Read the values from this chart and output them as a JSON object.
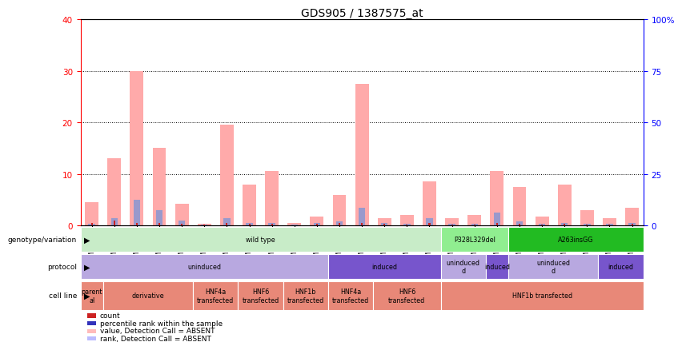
{
  "title": "GDS905 / 1387575_at",
  "samples": [
    "GSM27203",
    "GSM27204",
    "GSM27205",
    "GSM27206",
    "GSM27207",
    "GSM27150",
    "GSM27152",
    "GSM27156",
    "GSM27159",
    "GSM27063",
    "GSM27148",
    "GSM27151",
    "GSM27153",
    "GSM27157",
    "GSM27160",
    "GSM27147",
    "GSM27149",
    "GSM27161",
    "GSM27165",
    "GSM27163",
    "GSM27167",
    "GSM27169",
    "GSM27171",
    "GSM27170",
    "GSM27172"
  ],
  "pink_values": [
    4.5,
    13.0,
    30.0,
    15.0,
    4.2,
    0.3,
    19.5,
    8.0,
    10.5,
    0.5,
    1.8,
    6.0,
    27.5,
    1.5,
    2.0,
    8.5,
    1.5,
    2.0,
    10.5,
    7.5,
    1.8,
    8.0,
    3.0,
    1.5,
    3.5
  ],
  "blue_values": [
    0.3,
    1.5,
    5.0,
    3.0,
    1.0,
    0.2,
    1.5,
    0.5,
    0.5,
    0.2,
    0.5,
    0.8,
    3.5,
    0.5,
    0.4,
    1.5,
    0.4,
    0.4,
    2.5,
    0.8,
    0.3,
    0.5,
    0.3,
    0.3,
    0.5
  ],
  "red_values": [
    0.5,
    1.0,
    0.5,
    0.5,
    0.3,
    0.2,
    0.5,
    0.3,
    0.3,
    0.1,
    0.3,
    0.5,
    0.5,
    0.3,
    0.2,
    0.5,
    0.2,
    0.2,
    0.5,
    0.3,
    0.2,
    0.3,
    0.2,
    0.2,
    0.3
  ],
  "ylim_left": [
    0,
    40
  ],
  "ylim_right": [
    0,
    100
  ],
  "yticks_left": [
    0,
    10,
    20,
    30,
    40
  ],
  "yticks_right": [
    0,
    25,
    50,
    75,
    100
  ],
  "yticklabels_right": [
    "0",
    "25",
    "50",
    "75",
    "100%"
  ],
  "genotype_rows": [
    {
      "label": "wild type",
      "start": 0,
      "end": 16,
      "color": "#c8ecc8"
    },
    {
      "label": "P328L329del",
      "start": 16,
      "end": 19,
      "color": "#90ee90"
    },
    {
      "label": "A263insGG",
      "start": 19,
      "end": 25,
      "color": "#22bb22"
    }
  ],
  "protocol_rows": [
    {
      "label": "uninduced",
      "start": 0,
      "end": 11,
      "color": "#b8a8e0"
    },
    {
      "label": "induced",
      "start": 11,
      "end": 16,
      "color": "#7755cc"
    },
    {
      "label": "uninduced\nd",
      "start": 16,
      "end": 18,
      "color": "#b8a8e0"
    },
    {
      "label": "induced",
      "start": 18,
      "end": 19,
      "color": "#7755cc"
    },
    {
      "label": "uninduced\nd",
      "start": 19,
      "end": 23,
      "color": "#b8a8e0"
    },
    {
      "label": "induced",
      "start": 23,
      "end": 25,
      "color": "#7755cc"
    }
  ],
  "cellline_rows": [
    {
      "label": "parent\nal",
      "start": 0,
      "end": 1,
      "color": "#e88878"
    },
    {
      "label": "derivative",
      "start": 1,
      "end": 5,
      "color": "#e88878"
    },
    {
      "label": "HNF4a\ntransfected",
      "start": 5,
      "end": 7,
      "color": "#e88878"
    },
    {
      "label": "HNF6\ntransfected",
      "start": 7,
      "end": 9,
      "color": "#e88878"
    },
    {
      "label": "HNF1b\ntransfected",
      "start": 9,
      "end": 11,
      "color": "#e88878"
    },
    {
      "label": "HNF4a\ntransfected",
      "start": 11,
      "end": 13,
      "color": "#e88878"
    },
    {
      "label": "HNF6\ntransfected",
      "start": 13,
      "end": 16,
      "color": "#e88878"
    },
    {
      "label": "HNF1b transfected",
      "start": 16,
      "end": 25,
      "color": "#e88878"
    }
  ],
  "row_labels": [
    "genotype/variation",
    "protocol",
    "cell line"
  ],
  "legend_items": [
    {
      "color": "#cc2222",
      "label": "count"
    },
    {
      "color": "#3333bb",
      "label": "percentile rank within the sample"
    },
    {
      "color": "#ffbbbb",
      "label": "value, Detection Call = ABSENT"
    },
    {
      "color": "#bbbbff",
      "label": "rank, Detection Call = ABSENT"
    }
  ],
  "pink_color": "#ffaaaa",
  "blue_color": "#9999cc",
  "red_color": "#cc2222"
}
